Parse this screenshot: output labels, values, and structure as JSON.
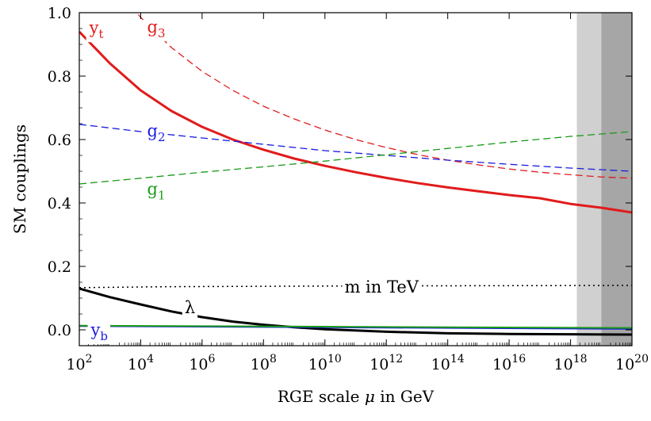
{
  "chart_data": {
    "type": "line",
    "title": "",
    "xlabel": "RGE scale μ in GeV",
    "xlabel_parts": {
      "before": "RGE scale ",
      "symbol": "μ",
      "after": " in GeV"
    },
    "ylabel": "SM couplings",
    "x_scale": "log10",
    "xlim": [
      100,
      1e+20
    ],
    "ylim": [
      -0.05,
      1.0
    ],
    "grid": false,
    "legend": "none",
    "x_ticks": [
      {
        "base": "10",
        "exp": "2",
        "value": 100.0
      },
      {
        "base": "10",
        "exp": "4",
        "value": 10000.0
      },
      {
        "base": "10",
        "exp": "6",
        "value": 1000000.0
      },
      {
        "base": "10",
        "exp": "8",
        "value": 100000000.0
      },
      {
        "base": "10",
        "exp": "10",
        "value": 10000000000.0
      },
      {
        "base": "10",
        "exp": "12",
        "value": 1000000000000.0
      },
      {
        "base": "10",
        "exp": "14",
        "value": 100000000000000.0
      },
      {
        "base": "10",
        "exp": "16",
        "value": 1e+16
      },
      {
        "base": "10",
        "exp": "18",
        "value": 1e+18
      },
      {
        "base": "10",
        "exp": "20",
        "value": 1e+20
      }
    ],
    "y_ticks": [
      "0.0",
      "0.2",
      "0.4",
      "0.6",
      "0.8",
      "1.0"
    ],
    "y_tick_values": [
      0.0,
      0.2,
      0.4,
      0.6,
      0.8,
      1.0
    ],
    "shaded_bands": [
      {
        "x_range": [
          1.6e+18,
          1e+19
        ],
        "color": "#d0d0d0"
      },
      {
        "x_range": [
          1e+19,
          1e+20
        ],
        "color": "#a6a6a6"
      }
    ],
    "series": [
      {
        "name": "g3",
        "label_main": "g",
        "label_sub": "3",
        "label_x": 32000.0,
        "label_y": 0.955,
        "color": "#e11b1b",
        "dash": "dashed",
        "width": 1.3,
        "x": [
          2000.0,
          5000.0,
          10000.0,
          100000.0,
          1000000.0,
          10000000.0,
          100000000.0,
          1000000000.0,
          10000000000.0,
          100000000000.0,
          1000000000000.0,
          10000000000000.0,
          100000000000000.0,
          1000000000000000.0,
          1e+16,
          1e+17,
          1e+18,
          1e+19,
          1e+20
        ],
        "y": [
          1.08,
          1.02,
          0.985,
          0.89,
          0.815,
          0.755,
          0.705,
          0.665,
          0.63,
          0.6,
          0.575,
          0.553,
          0.535,
          0.52,
          0.507,
          0.497,
          0.489,
          0.482,
          0.478
        ]
      },
      {
        "name": "yt",
        "label_main": "y",
        "label_sub": "t",
        "label_x": 360,
        "label_y": 0.952,
        "color": "#e11b1b",
        "dash": "solid",
        "width": 3,
        "x": [
          100,
          1000.0,
          10000.0,
          100000.0,
          1000000.0,
          10000000.0,
          100000000.0,
          1000000000.0,
          10000000000.0,
          100000000000.0,
          1000000000000.0,
          10000000000000.0,
          100000000000000.0,
          1000000000000000.0,
          1e+16,
          1e+17,
          1e+18,
          1e+19,
          1e+20
        ],
        "y": [
          0.94,
          0.84,
          0.755,
          0.69,
          0.64,
          0.6,
          0.568,
          0.54,
          0.517,
          0.497,
          0.479,
          0.463,
          0.449,
          0.437,
          0.425,
          0.415,
          0.397,
          0.385,
          0.37
        ]
      },
      {
        "name": "g2",
        "label_main": "g",
        "label_sub": "2",
        "label_x": 32000.0,
        "label_y": 0.627,
        "color": "#1b1be0",
        "dash": "dashed",
        "width": 1.3,
        "x": [
          100,
          10000.0,
          1000000.0,
          100000000.0,
          10000000000.0,
          1000000000000.0,
          100000000000000.0,
          1e+16,
          1e+18,
          1e+20
        ],
        "y": [
          0.648,
          0.625,
          0.605,
          0.585,
          0.565,
          0.55,
          0.535,
          0.522,
          0.51,
          0.5
        ]
      },
      {
        "name": "g1",
        "label_main": "g",
        "label_sub": "1",
        "label_x": 32000.0,
        "label_y": 0.444,
        "color": "#1a9a1a",
        "dash": "dashed",
        "width": 1.3,
        "x": [
          100,
          10000.0,
          1000000.0,
          100000000.0,
          10000000000.0,
          1000000000000.0,
          100000000000000.0,
          1e+16,
          1e+18,
          1e+20
        ],
        "y": [
          0.46,
          0.478,
          0.497,
          0.514,
          0.532,
          0.552,
          0.572,
          0.592,
          0.61,
          0.625
        ]
      },
      {
        "name": "m in TeV",
        "label_text": "m in TeV",
        "label_x": 700000000000.0,
        "label_y": 0.135,
        "color": "#000000",
        "dash": "dotted",
        "width": 1.5,
        "x": [
          100,
          100000.0,
          10000000000.0,
          1000000000000000.0,
          1e+20
        ],
        "y": [
          0.133,
          0.136,
          0.138,
          0.139,
          0.14
        ]
      },
      {
        "name": "λ",
        "label_text": "λ",
        "label_x": 400000.0,
        "label_y": 0.07,
        "color": "#000000",
        "dash": "solid",
        "width": 3,
        "x": [
          100,
          1000.0,
          10000.0,
          100000.0,
          1000000.0,
          10000000.0,
          100000000.0,
          1000000000.0,
          10000000000.0,
          1000000000000.0,
          100000000000000.0,
          1e+16,
          1e+18,
          1e+20
        ],
        "y": [
          0.13,
          0.103,
          0.08,
          0.058,
          0.04,
          0.026,
          0.016,
          0.008,
          0.002,
          -0.006,
          -0.011,
          -0.013,
          -0.014,
          -0.015
        ]
      },
      {
        "name": "yb",
        "label_main": "y",
        "label_sub": "b",
        "label_x": 450,
        "label_y": 0.0,
        "color": "#1b1be0",
        "dash": "solid",
        "width": 2,
        "x": [
          100,
          1e+20
        ],
        "y": [
          0.012,
          0.003
        ]
      },
      {
        "name": "yb-green",
        "color": "#1a9a1a",
        "dash": "solid",
        "width": 2,
        "x": [
          100,
          1e+20
        ],
        "y": [
          0.013,
          0.006
        ]
      }
    ]
  }
}
